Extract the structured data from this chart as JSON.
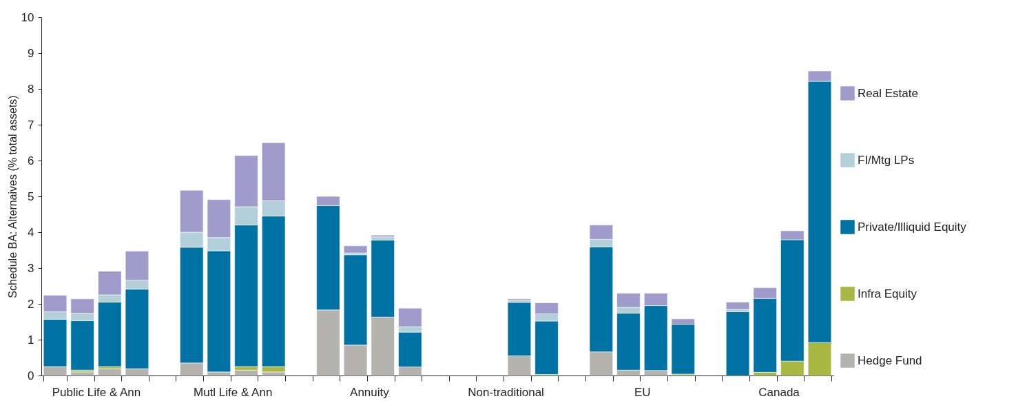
{
  "chart_data": {
    "type": "bar",
    "stacked": true,
    "ylabel": "Schedule BA: Alternaives (% total assets)",
    "categories": [
      null,
      "Public Life & Ann",
      null,
      null,
      null,
      null,
      "Mutl Life & Ann",
      null,
      null,
      null,
      null,
      "Annuity",
      null,
      null,
      null,
      null,
      "Non-traditional",
      null,
      null,
      null,
      null,
      "EU",
      null,
      null,
      null,
      null,
      "Canada",
      null,
      null
    ],
    "ylim": [
      0,
      10
    ],
    "yticks": [
      0,
      1,
      2,
      3,
      4,
      5,
      6,
      7,
      8,
      9,
      10
    ],
    "grid": false,
    "legend": "right",
    "series": [
      {
        "name": "Hedge Fund",
        "color": "#b4b3ae",
        "values": [
          0.25,
          0.1,
          0.19,
          0.19,
          null,
          0.35,
          0.1,
          0.15,
          0.1,
          null,
          1.83,
          0.85,
          1.63,
          0.24,
          null,
          null,
          null,
          0.55,
          null,
          null,
          0.66,
          0.15,
          0.14,
          null,
          null,
          null,
          null,
          null,
          null
        ]
      },
      {
        "name": "Infra Equity",
        "color": "#a9b843",
        "values": [
          null,
          0.05,
          0.06,
          null,
          null,
          null,
          null,
          0.1,
          0.15,
          null,
          null,
          null,
          null,
          null,
          null,
          null,
          null,
          null,
          0.03,
          null,
          null,
          null,
          null,
          0.04,
          null,
          null,
          0.09,
          0.4,
          0.92
        ]
      },
      {
        "name": "Private/Illiquid Equity",
        "color": "#0071a3",
        "values": [
          1.32,
          1.38,
          1.8,
          2.22,
          null,
          3.23,
          3.38,
          3.95,
          4.2,
          null,
          2.91,
          2.52,
          2.15,
          0.97,
          null,
          null,
          null,
          1.49,
          1.49,
          null,
          2.93,
          1.59,
          1.81,
          1.39,
          null,
          1.78,
          2.06,
          3.39,
          7.29
        ]
      },
      {
        "name": "FI/Mtg LPs",
        "color": "#b3cfd9",
        "values": [
          0.21,
          0.21,
          0.2,
          0.25,
          null,
          0.42,
          0.37,
          0.51,
          0.43,
          null,
          null,
          0.05,
          0.09,
          0.15,
          null,
          null,
          null,
          0.06,
          0.2,
          null,
          0.21,
          0.16,
          null,
          null,
          null,
          0.06,
          null,
          null,
          null
        ]
      },
      {
        "name": "Real Estate",
        "color": "#9f9ccb",
        "values": [
          0.46,
          0.4,
          0.66,
          0.81,
          null,
          1.17,
          1.06,
          1.43,
          1.62,
          null,
          0.26,
          0.2,
          0.05,
          0.52,
          null,
          null,
          null,
          0.04,
          0.31,
          null,
          0.4,
          0.4,
          0.35,
          0.15,
          null,
          0.21,
          0.3,
          0.25,
          0.29
        ]
      }
    ]
  }
}
